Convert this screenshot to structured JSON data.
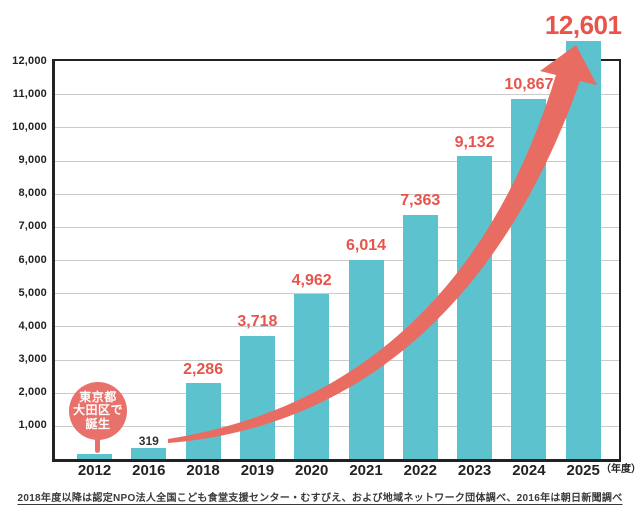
{
  "chart": {
    "x_axis_unit": "（年度）",
    "footnote": "2018年度以降は認定NPO法人全国こども食堂支援センター・むすびえ、および地域ネットワーク団体調べ、2016年は朝日新聞調べ"
  },
  "annotation_badge": {
    "lines": [
      "東京都",
      "大田区で",
      "誕生"
    ]
  },
  "colors": {
    "bar": "#5BC2CE",
    "arrow": "#E86C62",
    "badge": "#E8716B",
    "badge_text": "#FFFFFF",
    "value_label_red": "#E8544B",
    "value_label_dark": "#333333",
    "axis": "#222222",
    "gridline": "#CBCBCB",
    "tick_text": "#222222",
    "background": "#FFFFFF"
  },
  "chart_data": {
    "type": "bar",
    "title": "",
    "categories": [
      "2012",
      "2016",
      "2018",
      "2019",
      "2020",
      "2021",
      "2022",
      "2023",
      "2024",
      "2025"
    ],
    "values": [
      150,
      319,
      2286,
      3718,
      4962,
      6014,
      7363,
      9132,
      10867,
      12601
    ],
    "value_labels": [
      "",
      "319",
      "2,286",
      "3,718",
      "4,962",
      "6,014",
      "7,363",
      "9,132",
      "10,867",
      "12,601"
    ],
    "value_label_styles": [
      "none",
      "dark",
      "red",
      "red",
      "red",
      "red",
      "red",
      "red",
      "red",
      "red-large"
    ],
    "xlabel": "（年度）",
    "ylabel": "",
    "ylim": [
      0,
      12000
    ],
    "y_tick_values": [
      1000,
      2000,
      3000,
      4000,
      5000,
      6000,
      7000,
      8000,
      9000,
      10000,
      11000,
      12000
    ],
    "y_tick_labels": [
      "1,000",
      "2,000",
      "3,000",
      "4,000",
      "5,000",
      "6,000",
      "7,000",
      "8,000",
      "9,000",
      "10,000",
      "11,000",
      "12,000"
    ],
    "grid": true,
    "legend_position": "none",
    "annotation": "東京都大田区で誕生",
    "trend_arrow": true
  }
}
